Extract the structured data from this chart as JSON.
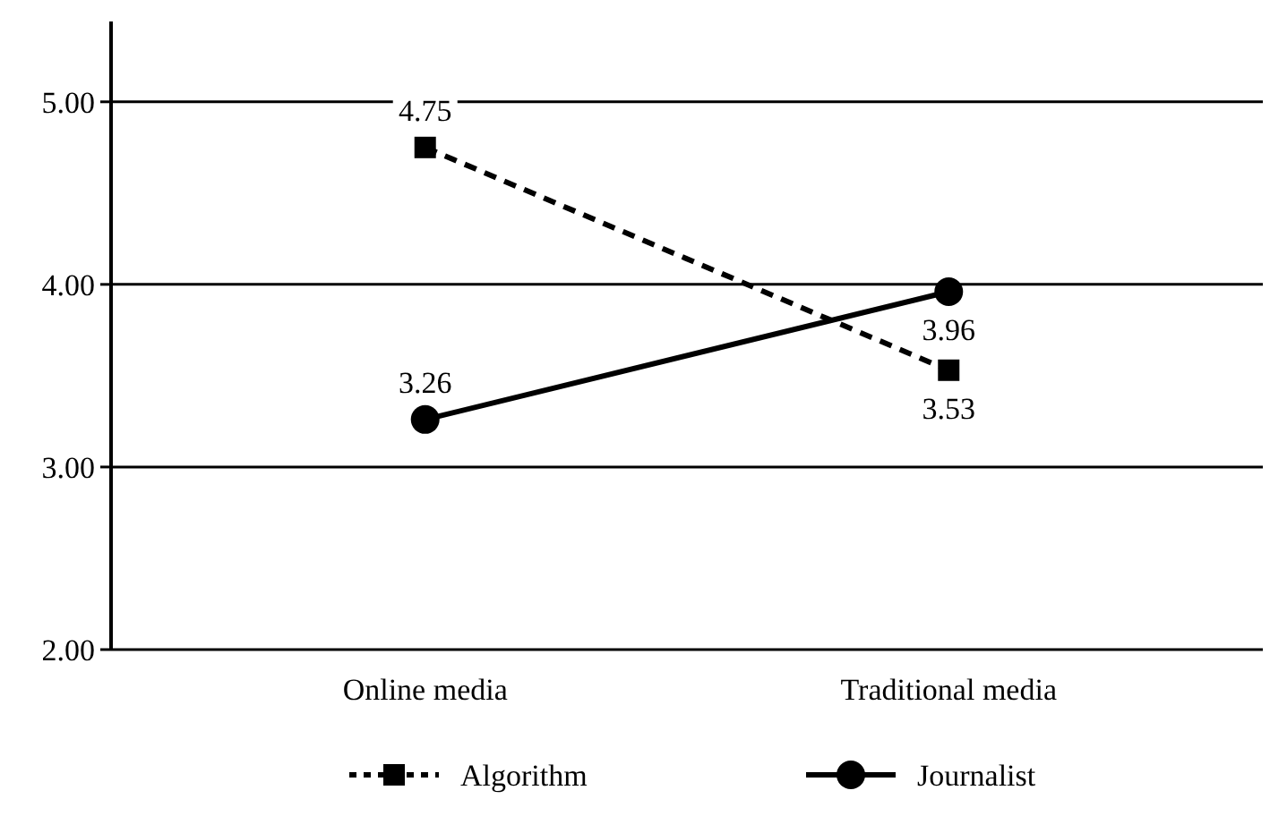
{
  "chart_data": {
    "type": "line",
    "categories": [
      "Online media",
      "Traditional media"
    ],
    "series": [
      {
        "name": "Algorithm",
        "color": "#000000",
        "values": [
          4.75,
          3.53
        ],
        "marker": "square",
        "line_style": "dashed"
      },
      {
        "name": "Journalist",
        "color": "#000000",
        "values": [
          3.26,
          3.96
        ],
        "marker": "circle",
        "line_style": "solid"
      }
    ],
    "ylim": [
      2,
      5.44
    ],
    "yticks": [
      {
        "value": 2,
        "label": "2.00"
      },
      {
        "value": 3,
        "label": "3.00"
      },
      {
        "value": 4,
        "label": "4.00"
      },
      {
        "value": 5,
        "label": "5.00"
      }
    ],
    "grid": "y",
    "data_labels": true,
    "legend": "bottom"
  }
}
